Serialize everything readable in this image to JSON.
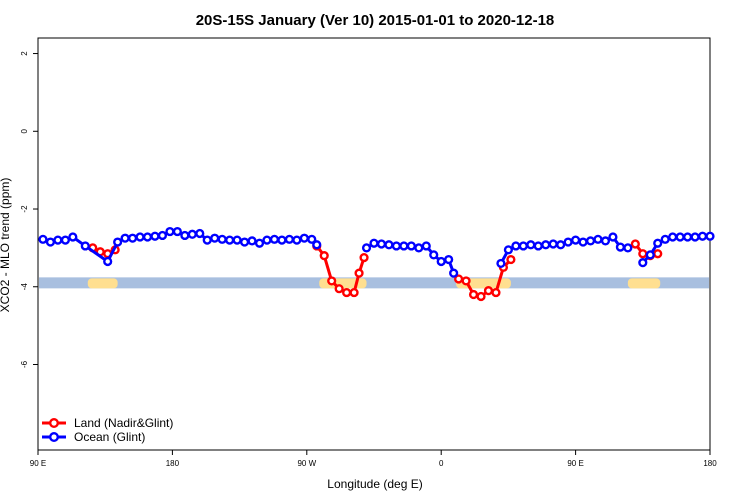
{
  "chart_data": {
    "type": "line",
    "title": "20S-15S January (Ver 10)   2015-01-01 to 2020-12-18",
    "xlabel": "Longitude (deg E)",
    "ylabel": "XCO2 - MLO trend (ppm)",
    "xlim": [
      90,
      360
    ],
    "ylim": [
      -8.2,
      2.4
    ],
    "x_ticks": [
      {
        "value": 90,
        "label": "90 E"
      },
      {
        "value": 144,
        "label": "180"
      },
      {
        "value": 198,
        "label": "90 W"
      },
      {
        "value": 252,
        "label": "0"
      },
      {
        "value": 306,
        "label": "90 E"
      },
      {
        "value": 360,
        "label": "180"
      }
    ],
    "y_ticks": [
      {
        "value": 2,
        "label": "2"
      },
      {
        "value": 0,
        "label": "0"
      },
      {
        "value": -2,
        "label": "-2"
      },
      {
        "value": -4,
        "label": "-4"
      },
      {
        "value": -6,
        "label": "-6"
      }
    ],
    "grid": false,
    "legend_position": "bottom-left",
    "series": [
      {
        "name": "Land (Nadir&Glint)",
        "color": "#ff0000",
        "segments": [
          [
            [
              112,
              -3.0
            ],
            [
              115,
              -3.1
            ],
            [
              118,
              -3.15
            ],
            [
              121,
              -3.05
            ]
          ],
          [
            [
              202,
              -2.95
            ],
            [
              205,
              -3.2
            ],
            [
              208,
              -3.85
            ],
            [
              211,
              -4.05
            ],
            [
              214,
              -4.15
            ],
            [
              217,
              -4.15
            ],
            [
              219,
              -3.65
            ],
            [
              221,
              -3.25
            ]
          ],
          [
            [
              259,
              -3.8
            ],
            [
              262,
              -3.85
            ],
            [
              265,
              -4.2
            ],
            [
              268,
              -4.25
            ],
            [
              271,
              -4.1
            ],
            [
              274,
              -4.15
            ],
            [
              277,
              -3.5
            ],
            [
              280,
              -3.3
            ]
          ],
          [
            [
              330,
              -2.9
            ],
            [
              333,
              -3.15
            ],
            [
              336,
              -3.2
            ],
            [
              339,
              -3.15
            ]
          ]
        ]
      },
      {
        "name": "Ocean (Glint)",
        "color": "#0000ff",
        "segments": [
          [
            [
              92,
              -2.78
            ],
            [
              95,
              -2.85
            ],
            [
              98,
              -2.8
            ],
            [
              101,
              -2.8
            ],
            [
              104,
              -2.72
            ],
            [
              109,
              -2.95
            ],
            [
              118,
              -3.35
            ],
            [
              122,
              -2.85
            ],
            [
              125,
              -2.75
            ],
            [
              128,
              -2.75
            ],
            [
              131,
              -2.72
            ],
            [
              134,
              -2.72
            ],
            [
              137,
              -2.7
            ],
            [
              140,
              -2.68
            ],
            [
              143,
              -2.58
            ],
            [
              146,
              -2.58
            ],
            [
              149,
              -2.68
            ],
            [
              152,
              -2.65
            ],
            [
              155,
              -2.63
            ],
            [
              158,
              -2.8
            ],
            [
              161,
              -2.75
            ],
            [
              164,
              -2.78
            ],
            [
              167,
              -2.8
            ],
            [
              170,
              -2.8
            ],
            [
              173,
              -2.85
            ],
            [
              176,
              -2.82
            ],
            [
              179,
              -2.88
            ],
            [
              182,
              -2.8
            ],
            [
              185,
              -2.78
            ],
            [
              188,
              -2.8
            ],
            [
              191,
              -2.78
            ],
            [
              194,
              -2.8
            ],
            [
              197,
              -2.75
            ],
            [
              200,
              -2.78
            ],
            [
              202,
              -2.92
            ]
          ],
          [
            [
              222,
              -3.0
            ],
            [
              225,
              -2.88
            ],
            [
              228,
              -2.9
            ],
            [
              231,
              -2.92
            ],
            [
              234,
              -2.95
            ],
            [
              237,
              -2.95
            ],
            [
              240,
              -2.95
            ],
            [
              243,
              -3.0
            ],
            [
              246,
              -2.95
            ],
            [
              249,
              -3.18
            ],
            [
              252,
              -3.35
            ],
            [
              255,
              -3.3
            ],
            [
              257,
              -3.65
            ]
          ],
          [
            [
              276,
              -3.4
            ],
            [
              279,
              -3.05
            ],
            [
              282,
              -2.95
            ],
            [
              285,
              -2.95
            ],
            [
              288,
              -2.92
            ],
            [
              291,
              -2.95
            ],
            [
              294,
              -2.92
            ],
            [
              297,
              -2.9
            ],
            [
              300,
              -2.92
            ],
            [
              303,
              -2.85
            ],
            [
              306,
              -2.8
            ],
            [
              309,
              -2.85
            ],
            [
              312,
              -2.82
            ],
            [
              315,
              -2.78
            ],
            [
              318,
              -2.82
            ],
            [
              321,
              -2.72
            ],
            [
              324,
              -2.98
            ],
            [
              327,
              -3.0
            ]
          ],
          [
            [
              333,
              -3.38
            ],
            [
              336,
              -3.18
            ],
            [
              339,
              -2.88
            ],
            [
              342,
              -2.78
            ],
            [
              345,
              -2.72
            ],
            [
              348,
              -2.72
            ],
            [
              351,
              -2.72
            ],
            [
              354,
              -2.72
            ],
            [
              357,
              -2.7
            ],
            [
              360,
              -2.7
            ]
          ]
        ]
      }
    ],
    "background_band": {
      "y": -3.9,
      "ocean_color": "#a8bfdf",
      "land_color": "#ffdf90",
      "land_ranges": [
        [
          110,
          122
        ],
        [
          203,
          222
        ],
        [
          258,
          280
        ],
        [
          327,
          340
        ]
      ]
    }
  }
}
